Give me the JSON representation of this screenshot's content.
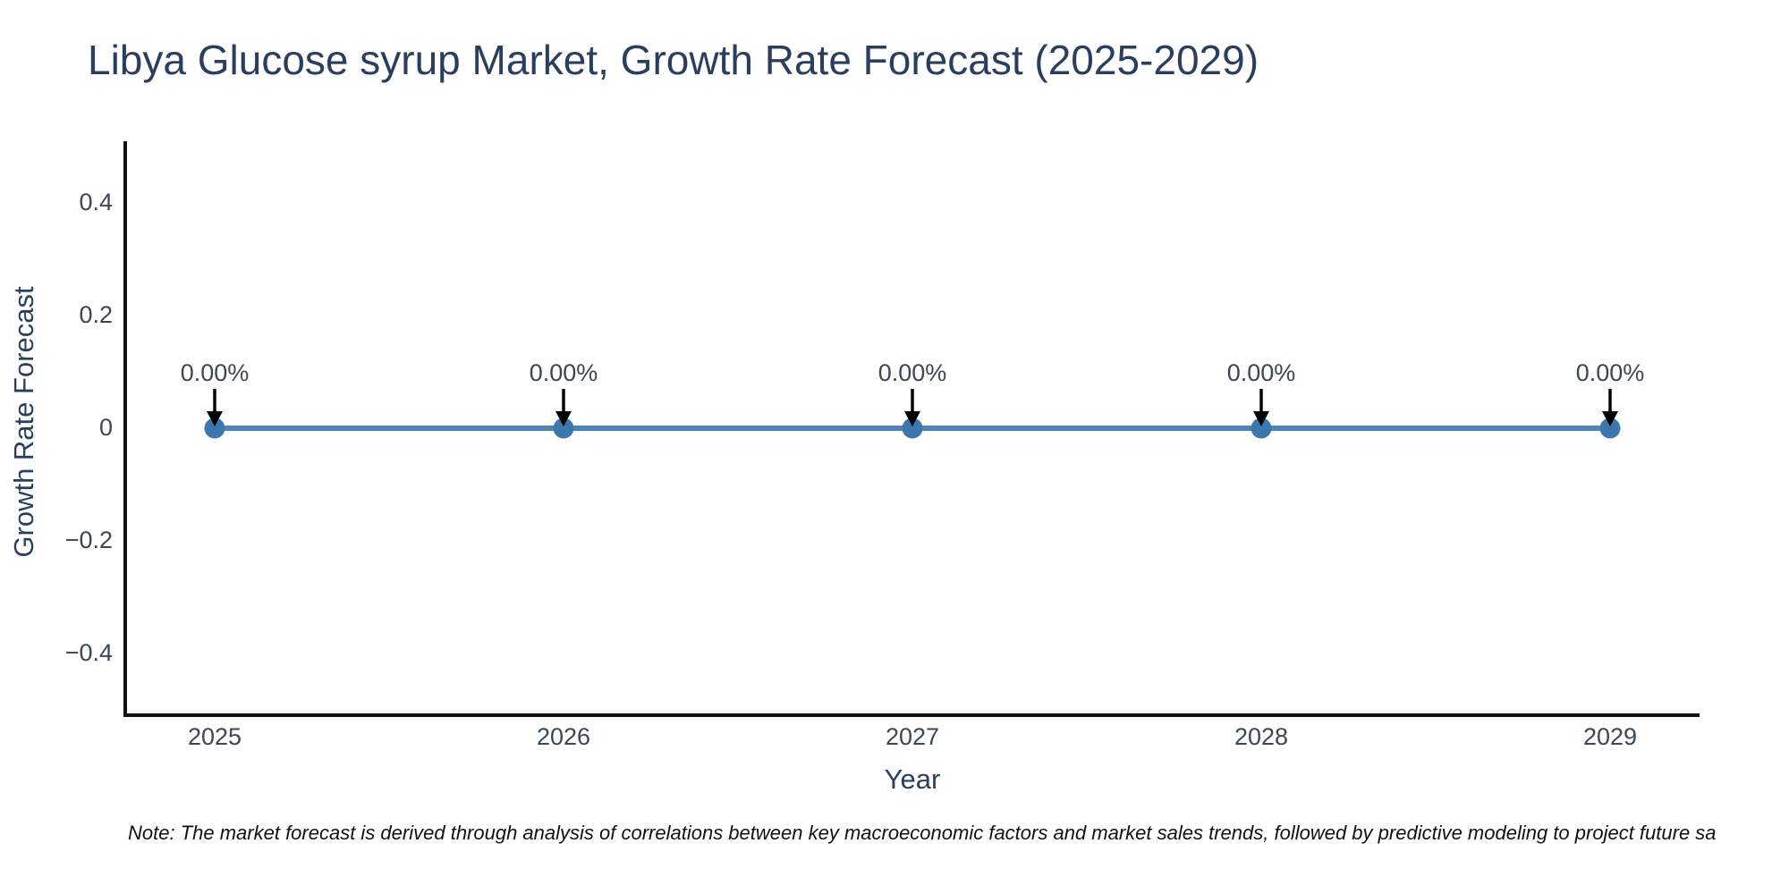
{
  "page": {
    "background": "#ffffff"
  },
  "chart_data": {
    "type": "line",
    "title": "Libya Glucose syrup Market, Growth Rate Forecast (2025-2029)",
    "xlabel": "Year",
    "ylabel": "Growth Rate Forecast",
    "x": [
      2025,
      2026,
      2027,
      2028,
      2029
    ],
    "xtick_labels": [
      "2025",
      "2026",
      "2027",
      "2028",
      "2029"
    ],
    "series": [
      {
        "name": "Growth Rate Forecast",
        "values": [
          0,
          0,
          0,
          0,
          0
        ]
      }
    ],
    "point_labels": [
      "0.00%",
      "0.00%",
      "0.00%",
      "0.00%",
      "0.00%"
    ],
    "yticks": [
      0.4,
      0.2,
      0,
      -0.2,
      -0.4
    ],
    "ytick_labels": [
      "0.4",
      "0.2",
      "0",
      "−0.2",
      "−0.4"
    ],
    "ylim": [
      -0.51,
      0.51
    ],
    "grid": false,
    "legend": "none",
    "line_color": "#4d85b5",
    "marker_color": "#3c78ae",
    "axis_color": "#111111",
    "arrow_color": "#000000",
    "title_color": "#2a3f5f",
    "tick_color": "#3b4657"
  },
  "note": {
    "text": "Note: The market forecast is derived through analysis of correlations between key macroeconomic factors and market sales trends, followed by predictive modeling to project future sa"
  }
}
